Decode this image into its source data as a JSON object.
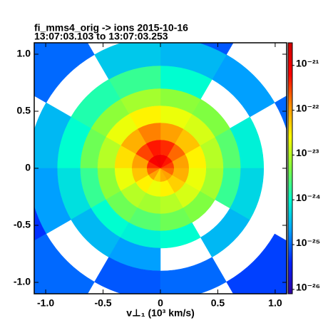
{
  "chart_data": {
    "type": "polar-heatmap",
    "title": "fi_mms4_orig -> ions 2015-10-16",
    "subtitle": "13:07:03.103 to 13:07:03.253",
    "x_label": "v⊥₁ (10³ km/s)",
    "xlim": [
      -1.1,
      1.1
    ],
    "ylim": [
      -1.1,
      1.1
    ],
    "xticks": [
      {
        "value": -1,
        "label": "-1.0"
      },
      {
        "value": -0.5,
        "label": "-0.5"
      },
      0,
      {
        "value": 0.5,
        "label": "0.5"
      },
      {
        "value": 1,
        "label": "1.0"
      }
    ],
    "yticks": [
      {
        "value": -1,
        "label": "-1.0"
      },
      {
        "value": -0.5,
        "label": "-0.5"
      },
      0,
      {
        "value": 0.5,
        "label": "0.5"
      },
      {
        "value": 1,
        "label": "1.0"
      }
    ],
    "r_edges": [
      0,
      0.12,
      0.25,
      0.4,
      0.55,
      0.7,
      0.9,
      1.15,
      1.6
    ],
    "theta_edges_deg": [
      0,
      30,
      60,
      90,
      120,
      150,
      180,
      210,
      240,
      270,
      300,
      330,
      360
    ],
    "values": [
      [
        3e-22,
        5e-22,
        8e-22,
        1e-21,
        8e-22,
        4e-22,
        2e-22,
        1e-22,
        5e-23,
        8e-23,
        1e-22,
        2e-22
      ],
      [
        1e-22,
        2e-22,
        4e-22,
        5e-22,
        3e-22,
        1e-22,
        6e-23,
        3e-23,
        2e-23,
        3e-23,
        5e-23,
        8e-23
      ],
      [
        3e-23,
        6e-23,
        1e-22,
        1.5e-22,
        8e-23,
        4e-23,
        2e-23,
        1e-23,
        8e-24,
        1e-23,
        1.5e-23,
        2e-23
      ],
      [
        1e-23,
        1.5e-23,
        2e-23,
        3e-23,
        2e-23,
        1e-23,
        6e-24,
        4e-24,
        3e-24,
        4e-24,
        5e-24,
        8e-24
      ],
      [
        3e-24,
        5e-24,
        6e-24,
        8e-24,
        6e-24,
        4e-24,
        2e-24,
        1e-24,
        8e-25,
        1e-24,
        null,
        2e-24
      ],
      [
        8e-25,
        null,
        1e-24,
        2e-24,
        1.5e-24,
        1e-24,
        6e-25,
        3e-25,
        2e-25,
        null,
        3e-25,
        5e-25
      ],
      [
        null,
        2e-25,
        3e-25,
        4e-25,
        null,
        3e-25,
        2e-25,
        null,
        8e-26,
        1e-25,
        null,
        null
      ],
      [
        1e-25,
        null,
        8e-26,
        null,
        1e-25,
        null,
        5e-26,
        1e-25,
        null,
        null,
        6e-26,
        null
      ]
    ],
    "clim": [
      8e-27,
      3.2e-21
    ],
    "clog": true,
    "cticks": [
      {
        "value": 1e-21,
        "label": "10⁻²¹"
      },
      {
        "value": 1e-22,
        "label": "10⁻²²"
      },
      {
        "value": 1e-23,
        "label": "10⁻²³"
      },
      {
        "value": 1e-24,
        "label": "10⁻²⁴"
      },
      {
        "value": 1e-25,
        "label": "10⁻²⁵"
      },
      {
        "value": 1e-26,
        "label": "10⁻²⁶"
      }
    ],
    "colorscale": [
      "#3000a0",
      "#0020ff",
      "#00a0ff",
      "#00ffd0",
      "#80ff40",
      "#ffff00",
      "#ff9000",
      "#ff0000",
      "#d00000"
    ]
  }
}
